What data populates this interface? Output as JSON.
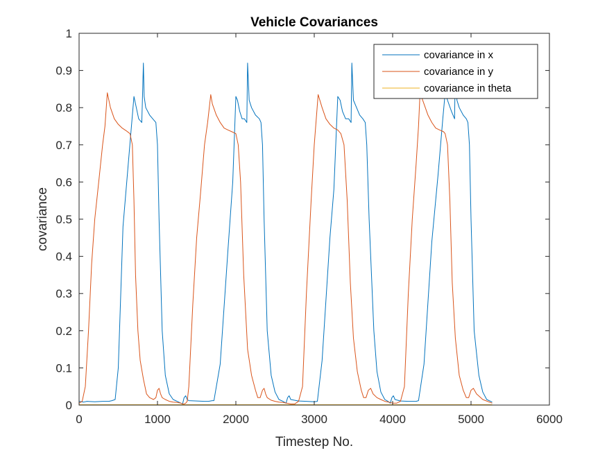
{
  "chart_data": {
    "type": "line",
    "title": "Vehicle Covariances",
    "xlabel": "Timestep No.",
    "ylabel": "covariance",
    "xlim": [
      0,
      6000
    ],
    "ylim": [
      0,
      1
    ],
    "xticks": [
      0,
      1000,
      2000,
      3000,
      4000,
      5000,
      6000
    ],
    "yticks": [
      0,
      0.1,
      0.2,
      0.3,
      0.4,
      0.5,
      0.6,
      0.7,
      0.8,
      0.9,
      1
    ],
    "grid": false,
    "legend_position": "top-right",
    "series": [
      {
        "name": "covariance in x",
        "color": "#0072BD",
        "x": [
          0,
          60,
          100,
          200,
          300,
          380,
          420,
          460,
          500,
          560,
          640,
          700,
          730,
          760,
          800,
          820,
          830,
          850,
          900,
          940,
          980,
          1000,
          1020,
          1060,
          1100,
          1150,
          1200,
          1250,
          1300,
          1320,
          1340,
          1360,
          1380,
          1400,
          1500,
          1600,
          1650,
          1700,
          1720,
          1800,
          1900,
          1960,
          2000,
          2020,
          2050,
          2080,
          2110,
          2140,
          2150,
          2170,
          2200,
          2250,
          2300,
          2320,
          2340,
          2360,
          2400,
          2450,
          2500,
          2550,
          2600,
          2640,
          2660,
          2680,
          2700,
          2800,
          2900,
          3000,
          3040,
          3100,
          3200,
          3250,
          3300,
          3330,
          3360,
          3400,
          3440,
          3470,
          3480,
          3500,
          3540,
          3580,
          3620,
          3650,
          3670,
          3700,
          3760,
          3800,
          3850,
          3900,
          3940,
          3970,
          3990,
          4010,
          4030,
          4100,
          4200,
          4300,
          4330,
          4400,
          4500,
          4580,
          4640,
          4670,
          4700,
          4750,
          4790,
          4800,
          4820,
          4850,
          4900,
          4940,
          4960,
          4980,
          5000,
          5040,
          5100,
          5150,
          5200,
          5270
        ],
        "values": [
          0.01,
          0.008,
          0.01,
          0.009,
          0.01,
          0.01,
          0.012,
          0.015,
          0.1,
          0.48,
          0.68,
          0.83,
          0.8,
          0.77,
          0.76,
          0.92,
          0.83,
          0.8,
          0.78,
          0.77,
          0.76,
          0.7,
          0.5,
          0.2,
          0.08,
          0.03,
          0.015,
          0.01,
          0.005,
          0.003,
          0.02,
          0.025,
          0.015,
          0.012,
          0.011,
          0.01,
          0.01,
          0.012,
          0.012,
          0.11,
          0.42,
          0.6,
          0.83,
          0.82,
          0.79,
          0.77,
          0.77,
          0.76,
          0.92,
          0.82,
          0.8,
          0.78,
          0.77,
          0.76,
          0.7,
          0.5,
          0.2,
          0.08,
          0.035,
          0.015,
          0.01,
          0.005,
          0.02,
          0.025,
          0.015,
          0.011,
          0.01,
          0.009,
          0.01,
          0.12,
          0.45,
          0.58,
          0.83,
          0.82,
          0.79,
          0.77,
          0.77,
          0.76,
          0.92,
          0.82,
          0.8,
          0.78,
          0.77,
          0.76,
          0.7,
          0.5,
          0.2,
          0.09,
          0.035,
          0.015,
          0.01,
          0.005,
          0.02,
          0.025,
          0.015,
          0.011,
          0.01,
          0.01,
          0.012,
          0.11,
          0.44,
          0.62,
          0.77,
          0.84,
          0.82,
          0.79,
          0.77,
          0.92,
          0.82,
          0.8,
          0.78,
          0.77,
          0.76,
          0.7,
          0.5,
          0.2,
          0.08,
          0.035,
          0.015,
          0.008
        ]
      },
      {
        "name": "covariance in y",
        "color": "#D95319",
        "x": [
          0,
          40,
          80,
          120,
          160,
          200,
          250,
          300,
          330,
          360,
          400,
          450,
          500,
          550,
          600,
          650,
          680,
          700,
          720,
          750,
          780,
          820,
          860,
          900,
          950,
          980,
          1000,
          1020,
          1040,
          1060,
          1100,
          1150,
          1200,
          1250,
          1300,
          1320,
          1340,
          1360,
          1380,
          1400,
          1450,
          1500,
          1550,
          1600,
          1640,
          1680,
          1700,
          1750,
          1800,
          1850,
          1900,
          1950,
          2000,
          2030,
          2060,
          2100,
          2150,
          2200,
          2250,
          2280,
          2310,
          2340,
          2360,
          2380,
          2400,
          2450,
          2500,
          2550,
          2600,
          2650,
          2700,
          2750,
          2800,
          2850,
          2900,
          2960,
          3000,
          3050,
          3100,
          3150,
          3200,
          3250,
          3300,
          3340,
          3380,
          3420,
          3460,
          3500,
          3550,
          3600,
          3630,
          3660,
          3690,
          3720,
          3750,
          3800,
          3850,
          3900,
          3950,
          4000,
          4050,
          4100,
          4150,
          4200,
          4250,
          4300,
          4330,
          4350,
          4400,
          4450,
          4500,
          4550,
          4600,
          4650,
          4670,
          4700,
          4730,
          4760,
          4800,
          4850,
          4900,
          4940,
          4970,
          5000,
          5030,
          5070,
          5150,
          5270
        ],
        "values": [
          0.005,
          0.01,
          0.05,
          0.2,
          0.38,
          0.5,
          0.6,
          0.7,
          0.75,
          0.84,
          0.8,
          0.77,
          0.755,
          0.745,
          0.738,
          0.73,
          0.7,
          0.55,
          0.35,
          0.2,
          0.12,
          0.07,
          0.03,
          0.02,
          0.015,
          0.02,
          0.04,
          0.045,
          0.03,
          0.02,
          0.015,
          0.01,
          0.008,
          0.007,
          0.005,
          0.003,
          0.003,
          0.005,
          0.01,
          0.05,
          0.27,
          0.45,
          0.57,
          0.7,
          0.76,
          0.835,
          0.81,
          0.78,
          0.76,
          0.745,
          0.74,
          0.735,
          0.73,
          0.7,
          0.6,
          0.35,
          0.15,
          0.08,
          0.04,
          0.02,
          0.02,
          0.04,
          0.045,
          0.03,
          0.02,
          0.013,
          0.01,
          0.008,
          0.007,
          0.005,
          0.003,
          0.003,
          0.01,
          0.05,
          0.3,
          0.55,
          0.7,
          0.835,
          0.8,
          0.77,
          0.755,
          0.745,
          0.74,
          0.73,
          0.7,
          0.55,
          0.33,
          0.18,
          0.09,
          0.04,
          0.02,
          0.02,
          0.04,
          0.045,
          0.03,
          0.02,
          0.015,
          0.01,
          0.008,
          0.005,
          0.005,
          0.01,
          0.05,
          0.3,
          0.5,
          0.65,
          0.75,
          0.84,
          0.81,
          0.78,
          0.76,
          0.745,
          0.74,
          0.735,
          0.73,
          0.7,
          0.55,
          0.33,
          0.18,
          0.08,
          0.04,
          0.02,
          0.02,
          0.04,
          0.045,
          0.03,
          0.015,
          0.005
        ]
      },
      {
        "name": "covariance in theta",
        "color": "#EDB120",
        "x": [
          0,
          5270
        ],
        "values": [
          0.001,
          0.001
        ]
      }
    ]
  }
}
